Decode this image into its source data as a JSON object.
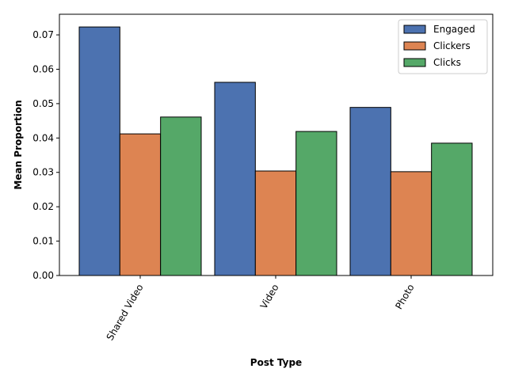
{
  "chart_data": {
    "type": "bar",
    "title": "",
    "xlabel": "Post Type",
    "ylabel": "Mean Proportion",
    "categories": [
      "Shared Video",
      "Video",
      "Photo"
    ],
    "series": [
      {
        "name": "Engaged",
        "values": [
          0.0723,
          0.0562,
          0.0489
        ],
        "color": "#4c72b0"
      },
      {
        "name": "Clickers",
        "values": [
          0.0412,
          0.0304,
          0.0302
        ],
        "color": "#dd8452"
      },
      {
        "name": "Clicks",
        "values": [
          0.0461,
          0.0419,
          0.0385
        ],
        "color": "#55a868"
      }
    ],
    "ylim": [
      0,
      0.076
    ],
    "yticks": [
      0.0,
      0.01,
      0.02,
      0.03,
      0.04,
      0.05,
      0.06,
      0.07
    ],
    "ytick_labels": [
      "0.00",
      "0.01",
      "0.02",
      "0.03",
      "0.04",
      "0.05",
      "0.06",
      "0.07"
    ],
    "xtick_rotation_deg": 60,
    "grid": false,
    "legend": {
      "placement": "top-right"
    }
  }
}
